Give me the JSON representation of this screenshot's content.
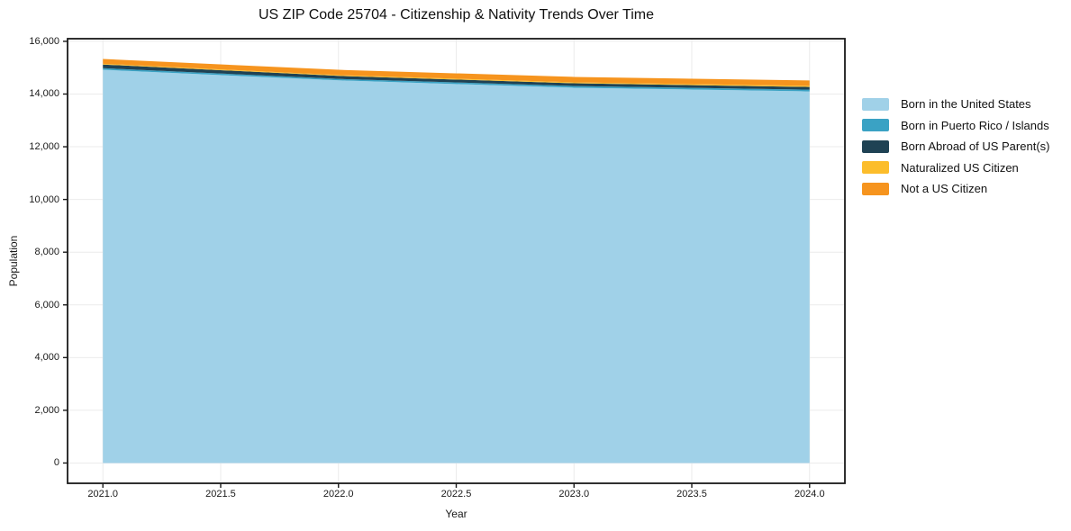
{
  "chart_data": {
    "type": "area",
    "stacked": true,
    "title": "US ZIP Code 25704 - Citizenship & Nativity Trends Over Time",
    "xlabel": "Year",
    "ylabel": "Population",
    "x": [
      2021,
      2022,
      2023,
      2024
    ],
    "series": [
      {
        "name": "Born in the United States",
        "color": "#A0D1E8",
        "values": [
          14920,
          14520,
          14240,
          14100
        ]
      },
      {
        "name": "Born in Puerto Rico / Islands",
        "color": "#3AA2C4",
        "values": [
          60,
          55,
          65,
          65
        ]
      },
      {
        "name": "Born Abroad of US Parent(s)",
        "color": "#1F4254",
        "values": [
          140,
          115,
          105,
          105
        ]
      },
      {
        "name": "Naturalized US Citizen",
        "color": "#FCBD2B",
        "values": [
          30,
          30,
          35,
          40
        ]
      },
      {
        "name": "Not a US Citizen",
        "color": "#F6941E",
        "values": [
          180,
          200,
          205,
          205
        ]
      }
    ],
    "xlim": [
      2020.85,
      2024.15
    ],
    "ylim": [
      -770,
      16100
    ],
    "xticks": [
      2021.0,
      2021.5,
      2022.0,
      2022.5,
      2023.0,
      2023.5,
      2024.0
    ],
    "xtick_labels": [
      "2021.0",
      "2021.5",
      "2022.0",
      "2022.5",
      "2023.0",
      "2023.5",
      "2024.0"
    ],
    "yticks": [
      0,
      2000,
      4000,
      6000,
      8000,
      10000,
      12000,
      14000,
      16000
    ],
    "ytick_labels": [
      "0",
      "2,000",
      "4,000",
      "6,000",
      "8,000",
      "10,000",
      "12,000",
      "14,000",
      "16,000"
    ],
    "grid": true,
    "legend_position": "right",
    "colors": {
      "frame": "#1a1a1a",
      "grid": "#ebebeb",
      "background": "#ffffff"
    }
  }
}
